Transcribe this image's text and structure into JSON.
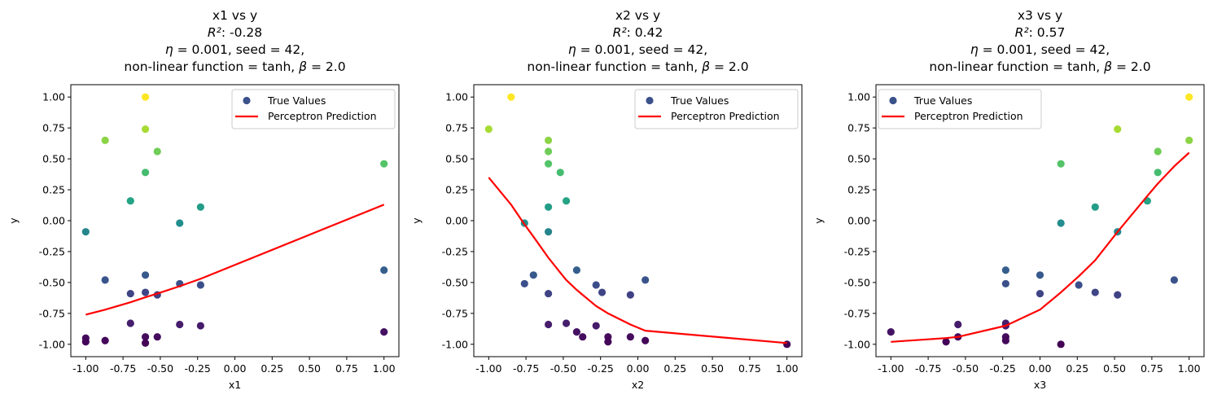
{
  "figure": {
    "background": "#ffffff"
  },
  "colors": {
    "prediction_line": "#ff0000",
    "legend_marker": "#3b528b",
    "legend_frame": "#cccccc"
  },
  "legend_labels": [
    "True Values",
    "Perceptron Prediction"
  ],
  "xticks": [
    "-1.00",
    "-0.75",
    "-0.50",
    "-0.25",
    "0.00",
    "0.25",
    "0.50",
    "0.75",
    "1.00"
  ],
  "yticks": [
    "1.00",
    "0.75",
    "0.50",
    "0.25",
    "0.00",
    "-0.25",
    "-0.50",
    "-0.75",
    "-1.00"
  ],
  "chart_data": [
    {
      "type": "scatter",
      "title_lines": [
        "x1 vs y",
        "R²: -0.28",
        "η = 0.001, seed = 42,",
        "non-linear function = tanh, β = 2.0"
      ],
      "xlabel": "x1",
      "ylabel": "y",
      "xlim": [
        -1.1,
        1.1
      ],
      "ylim": [
        -1.1,
        1.1
      ],
      "xticks": [
        -1.0,
        -0.75,
        -0.5,
        -0.25,
        0.0,
        0.25,
        0.5,
        0.75,
        1.0
      ],
      "yticks": [
        1.0,
        0.75,
        0.5,
        0.25,
        0.0,
        -0.25,
        -0.5,
        -0.75,
        -1.0
      ],
      "legend_position": "upper right",
      "series": [
        {
          "name": "True Values",
          "kind": "scatter",
          "colormap": "viridis",
          "x": [
            -1.0,
            -1.0,
            -1.0,
            -0.87,
            -0.87,
            -0.87,
            -0.7,
            -0.7,
            -0.6,
            -0.6,
            -0.6,
            -0.6,
            -0.6,
            -0.6,
            -0.52,
            -0.52,
            -0.52,
            -0.37,
            -0.37,
            -0.37,
            -0.23,
            -0.23,
            -0.23,
            -0.7,
            -0.6,
            1.0,
            1.0,
            1.0
          ],
          "y": [
            -0.09,
            -0.95,
            -0.98,
            0.65,
            -0.48,
            -0.97,
            0.16,
            -0.59,
            1.0,
            0.74,
            0.39,
            -0.44,
            -0.58,
            -0.94,
            0.56,
            -0.6,
            -0.94,
            -0.02,
            -0.51,
            -0.84,
            0.11,
            -0.52,
            -0.85,
            -0.83,
            -0.99,
            0.46,
            -0.4,
            -0.9
          ]
        },
        {
          "name": "Perceptron Prediction",
          "kind": "line",
          "x": [
            -1.0,
            -0.87,
            -0.7,
            -0.6,
            -0.52,
            -0.37,
            -0.23,
            1.0
          ],
          "y": [
            -0.76,
            -0.72,
            -0.66,
            -0.62,
            -0.59,
            -0.53,
            -0.47,
            0.13
          ]
        }
      ]
    },
    {
      "type": "scatter",
      "title_lines": [
        "x2 vs y",
        "R²: 0.42",
        "η = 0.001, seed = 42,",
        "non-linear function = tanh, β = 2.0"
      ],
      "xlabel": "x2",
      "ylabel": "y",
      "xlim": [
        -1.1,
        1.1
      ],
      "ylim": [
        -1.1,
        1.1
      ],
      "xticks": [
        -1.0,
        -0.75,
        -0.5,
        -0.25,
        0.0,
        0.25,
        0.5,
        0.75,
        1.0
      ],
      "yticks": [
        1.0,
        0.75,
        0.5,
        0.25,
        0.0,
        -0.25,
        -0.5,
        -0.75,
        -1.0
      ],
      "legend_position": "upper right",
      "series": [
        {
          "name": "True Values",
          "kind": "scatter",
          "colormap": "viridis",
          "x": [
            -1.0,
            -0.85,
            -0.6,
            -0.6,
            -0.6,
            -0.6,
            -0.6,
            -0.6,
            -0.6,
            -0.52,
            -0.48,
            -0.48,
            -0.76,
            -0.76,
            -0.7,
            -0.41,
            -0.41,
            -0.37,
            -0.28,
            -0.28,
            -0.24,
            -0.2,
            -0.2,
            -0.05,
            -0.05,
            0.05,
            0.05,
            1.0
          ],
          "y": [
            0.74,
            1.0,
            0.65,
            0.56,
            0.46,
            0.11,
            -0.09,
            -0.59,
            -0.84,
            0.39,
            0.16,
            -0.83,
            -0.02,
            -0.51,
            -0.44,
            -0.4,
            -0.9,
            -0.94,
            -0.52,
            -0.85,
            -0.58,
            -0.94,
            -0.98,
            -0.6,
            -0.94,
            -0.48,
            -0.97,
            -1.0
          ]
        },
        {
          "name": "Perceptron Prediction",
          "kind": "line",
          "x": [
            -1.0,
            -0.85,
            -0.76,
            -0.7,
            -0.6,
            -0.52,
            -0.48,
            -0.41,
            -0.37,
            -0.28,
            -0.24,
            -0.2,
            -0.05,
            0.05,
            1.0
          ],
          "y": [
            0.35,
            0.13,
            -0.03,
            -0.13,
            -0.3,
            -0.42,
            -0.48,
            -0.56,
            -0.6,
            -0.69,
            -0.72,
            -0.75,
            -0.84,
            -0.89,
            -0.99
          ]
        }
      ]
    },
    {
      "type": "scatter",
      "title_lines": [
        "x3 vs y",
        "R²: 0.57",
        "η = 0.001, seed = 42,",
        "non-linear function = tanh, β = 2.0"
      ],
      "xlabel": "x3",
      "ylabel": "y",
      "xlim": [
        -1.1,
        1.1
      ],
      "ylim": [
        -1.1,
        1.1
      ],
      "xticks": [
        -1.0,
        -0.75,
        -0.5,
        -0.25,
        0.0,
        0.25,
        0.5,
        0.75,
        1.0
      ],
      "yticks": [
        1.0,
        0.75,
        0.5,
        0.25,
        0.0,
        -0.25,
        -0.5,
        -0.75,
        -1.0
      ],
      "legend_position": "upper left",
      "series": [
        {
          "name": "True Values",
          "kind": "scatter",
          "colormap": "viridis",
          "x": [
            -1.0,
            -0.63,
            -0.55,
            -0.55,
            -0.23,
            -0.23,
            -0.23,
            -0.23,
            -0.23,
            -0.23,
            0.0,
            0.0,
            0.14,
            0.14,
            0.14,
            0.26,
            0.37,
            0.37,
            0.52,
            0.52,
            0.52,
            0.72,
            0.79,
            0.79,
            0.9,
            1.0,
            1.0
          ],
          "y": [
            -0.9,
            -0.98,
            -0.84,
            -0.94,
            -0.4,
            -0.51,
            -0.83,
            -0.85,
            -0.94,
            -0.97,
            -0.44,
            -0.59,
            0.46,
            -0.02,
            -1.0,
            -0.52,
            0.11,
            -0.58,
            0.74,
            -0.09,
            -0.6,
            0.16,
            0.56,
            0.39,
            -0.48,
            1.0,
            0.65
          ]
        },
        {
          "name": "Perceptron Prediction",
          "kind": "line",
          "x": [
            -1.0,
            -0.63,
            -0.55,
            -0.23,
            0.0,
            0.14,
            0.26,
            0.37,
            0.52,
            0.72,
            0.79,
            0.9,
            1.0
          ],
          "y": [
            -0.98,
            -0.95,
            -0.94,
            -0.85,
            -0.72,
            -0.58,
            -0.45,
            -0.32,
            -0.09,
            0.2,
            0.3,
            0.44,
            0.55
          ]
        }
      ]
    }
  ]
}
